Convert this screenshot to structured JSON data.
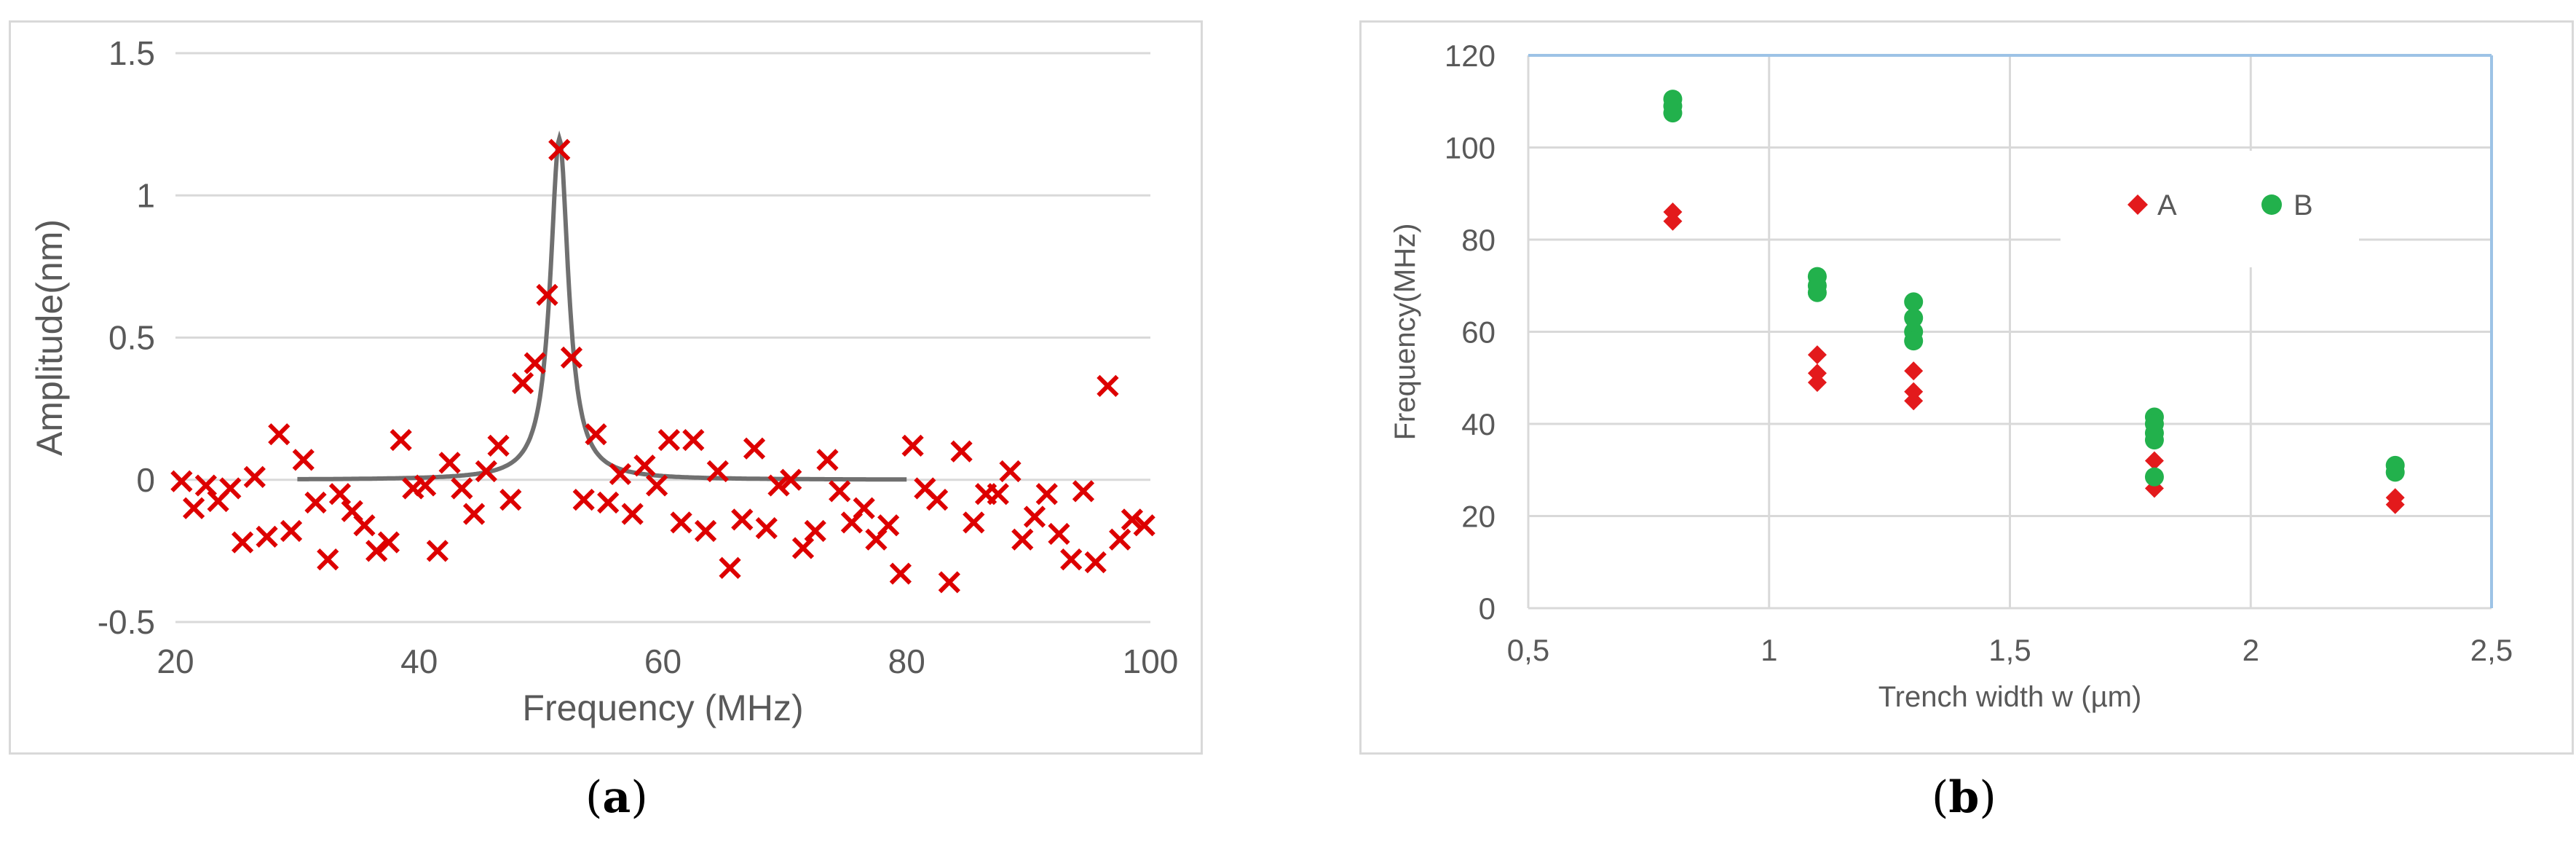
{
  "captions": {
    "a_open": "(",
    "a_letter": "a",
    "a_close": ")",
    "b_open": "(",
    "b_letter": "b",
    "b_close": ")"
  },
  "chart_data": [
    {
      "type": "scatter",
      "panel": "a",
      "xlabel": "Frequency (MHz)",
      "ylabel": "Amplitude(nm)",
      "xlim": [
        20,
        100
      ],
      "ylim": [
        -0.5,
        1.5
      ],
      "xticks": [
        20,
        40,
        60,
        80,
        100
      ],
      "yticks": [
        -0.5,
        0,
        0.5,
        1,
        1.5
      ],
      "ytick_labels": [
        "-0.5",
        "0",
        "0.5",
        "1",
        "1.5"
      ],
      "grid": "horizontal",
      "colors": {
        "points": "#dd0000",
        "fit": "#707070",
        "grid": "#d9d9d9",
        "text": "#595959"
      },
      "series": [
        {
          "type": "scatter",
          "marker": "x",
          "points": [
            [
              20.5,
              -0.005
            ],
            [
              21.5,
              -0.1
            ],
            [
              22.5,
              -0.02
            ],
            [
              23.5,
              -0.075
            ],
            [
              24.5,
              -0.03
            ],
            [
              25.5,
              -0.22
            ],
            [
              26.5,
              0.01
            ],
            [
              27.5,
              -0.2
            ],
            [
              28.5,
              0.16
            ],
            [
              29.5,
              -0.18
            ],
            [
              30.5,
              0.07
            ],
            [
              31.5,
              -0.08
            ],
            [
              32.5,
              -0.28
            ],
            [
              33.5,
              -0.05
            ],
            [
              34.5,
              -0.11
            ],
            [
              35.5,
              -0.16
            ],
            [
              36.5,
              -0.25
            ],
            [
              37.5,
              -0.22
            ],
            [
              38.5,
              0.14
            ],
            [
              39.5,
              -0.03
            ],
            [
              40.5,
              -0.02
            ],
            [
              41.5,
              -0.25
            ],
            [
              42.5,
              0.06
            ],
            [
              43.5,
              -0.03
            ],
            [
              44.5,
              -0.12
            ],
            [
              45.5,
              0.03
            ],
            [
              46.5,
              0.12
            ],
            [
              47.5,
              -0.07
            ],
            [
              48.5,
              0.34
            ],
            [
              49.5,
              0.41
            ],
            [
              50.5,
              0.65
            ],
            [
              51.5,
              1.16
            ],
            [
              52.5,
              0.43
            ],
            [
              53.5,
              -0.07
            ],
            [
              54.5,
              0.16
            ],
            [
              55.5,
              -0.08
            ],
            [
              56.5,
              0.02
            ],
            [
              57.5,
              -0.12
            ],
            [
              58.5,
              0.05
            ],
            [
              59.5,
              -0.02
            ],
            [
              60.5,
              0.14
            ],
            [
              61.5,
              -0.15
            ],
            [
              62.5,
              0.14
            ],
            [
              63.5,
              -0.18
            ],
            [
              64.5,
              0.03
            ],
            [
              65.5,
              -0.31
            ],
            [
              66.5,
              -0.14
            ],
            [
              67.5,
              0.11
            ],
            [
              68.5,
              -0.17
            ],
            [
              69.5,
              -0.02
            ],
            [
              70.5,
              0.0
            ],
            [
              71.5,
              -0.24
            ],
            [
              72.5,
              -0.18
            ],
            [
              73.5,
              0.07
            ],
            [
              74.5,
              -0.04
            ],
            [
              75.5,
              -0.15
            ],
            [
              76.5,
              -0.1
            ],
            [
              77.5,
              -0.21
            ],
            [
              78.5,
              -0.16
            ],
            [
              79.5,
              -0.33
            ],
            [
              80.5,
              0.12
            ],
            [
              81.5,
              -0.03
            ],
            [
              82.5,
              -0.07
            ],
            [
              83.5,
              -0.36
            ],
            [
              84.5,
              0.1
            ],
            [
              85.5,
              -0.15
            ],
            [
              86.5,
              -0.05
            ],
            [
              87.5,
              -0.05
            ],
            [
              88.5,
              0.03
            ],
            [
              89.5,
              -0.21
            ],
            [
              90.5,
              -0.13
            ],
            [
              91.5,
              -0.05
            ],
            [
              92.5,
              -0.19
            ],
            [
              93.5,
              -0.28
            ],
            [
              94.5,
              -0.04
            ],
            [
              95.5,
              -0.29
            ],
            [
              96.5,
              0.33
            ],
            [
              97.5,
              -0.21
            ],
            [
              98.5,
              -0.14
            ],
            [
              99.5,
              -0.16
            ]
          ]
        },
        {
          "type": "line",
          "function": "lorentzian",
          "center": 51.5,
          "amplitude": 1.2,
          "half_width": 0.9,
          "x_range": [
            30,
            80
          ]
        }
      ]
    },
    {
      "type": "scatter",
      "panel": "b",
      "xlabel": "Trench width w (µm)",
      "ylabel": "Frequency(MHz)",
      "xlim": [
        0.5,
        2.5
      ],
      "ylim": [
        0,
        120
      ],
      "xticks": [
        0.5,
        1,
        1.5,
        2,
        2.5
      ],
      "xtick_labels": [
        "0,5",
        "1",
        "1,5",
        "2",
        "2,5"
      ],
      "yticks": [
        0,
        20,
        40,
        60,
        80,
        100,
        120
      ],
      "ytick_labels": [
        "0",
        "20",
        "40",
        "60",
        "80",
        "100",
        "120"
      ],
      "grid": "both",
      "legend": "top-right",
      "colors": {
        "grid": "#d9d9d9",
        "frame_top_right": "#9dc3e6",
        "text": "#595959"
      },
      "series": [
        {
          "name": "A",
          "marker": "diamond",
          "color": "#e31a1c",
          "points": [
            [
              0.8,
              86
            ],
            [
              0.8,
              84
            ],
            [
              1.1,
              55
            ],
            [
              1.1,
              51
            ],
            [
              1.1,
              49
            ],
            [
              1.3,
              51.5
            ],
            [
              1.3,
              47
            ],
            [
              1.3,
              45
            ],
            [
              1.8,
              32
            ],
            [
              1.8,
              26
            ],
            [
              2.3,
              24
            ],
            [
              2.3,
              22.5
            ]
          ]
        },
        {
          "name": "B",
          "marker": "circle",
          "color": "#22b14c",
          "points": [
            [
              0.8,
              110.5
            ],
            [
              0.8,
              109
            ],
            [
              0.8,
              107.5
            ],
            [
              1.1,
              72
            ],
            [
              1.1,
              70
            ],
            [
              1.1,
              68.5
            ],
            [
              1.3,
              66.5
            ],
            [
              1.3,
              63
            ],
            [
              1.3,
              60
            ],
            [
              1.3,
              58
            ],
            [
              1.8,
              41.5
            ],
            [
              1.8,
              40
            ],
            [
              1.8,
              38
            ],
            [
              1.8,
              36.5
            ],
            [
              1.8,
              28.5
            ],
            [
              2.3,
              31
            ],
            [
              2.3,
              29.5
            ]
          ]
        }
      ]
    }
  ]
}
